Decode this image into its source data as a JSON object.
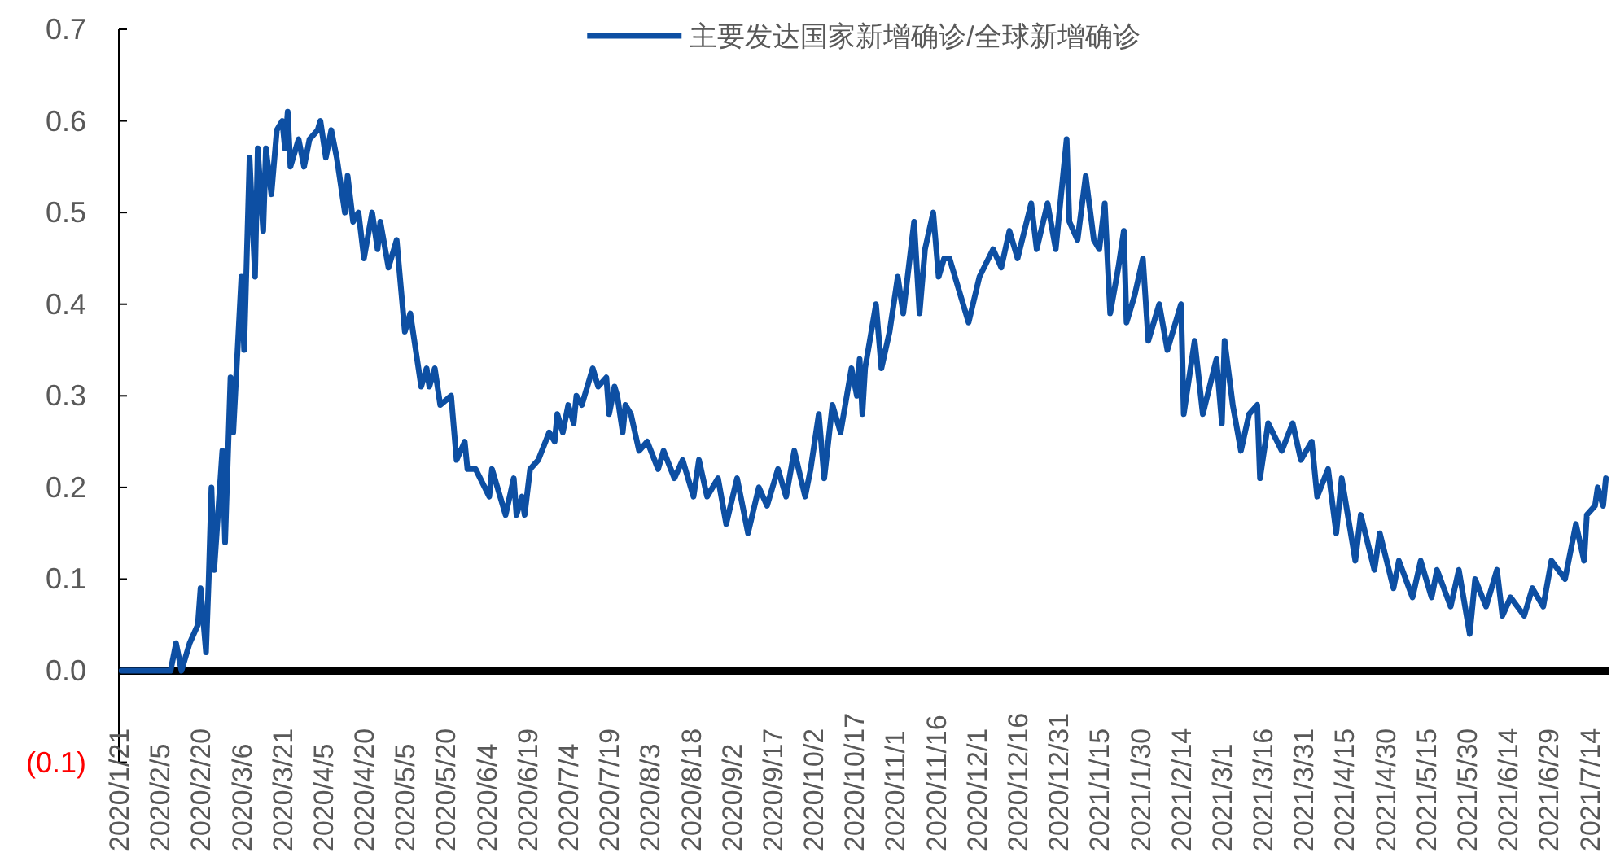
{
  "chart_data": {
    "type": "line",
    "x": [
      "2020-01-22",
      "2020-01-31",
      "2020-02-09",
      "2020-02-11",
      "2020-02-13",
      "2020-02-16",
      "2020-02-19",
      "2020-02-20",
      "2020-02-22",
      "2020-02-23",
      "2020-02-24",
      "2020-02-25",
      "2020-02-28",
      "2020-02-29",
      "2020-03-02",
      "2020-03-03",
      "2020-03-06",
      "2020-03-07",
      "2020-03-09",
      "2020-03-11",
      "2020-03-12",
      "2020-03-14",
      "2020-03-15",
      "2020-03-17",
      "2020-03-19",
      "2020-03-21",
      "2020-03-22",
      "2020-03-23",
      "2020-03-24",
      "2020-03-27",
      "2020-03-29",
      "2020-03-31",
      "2020-04-03",
      "2020-04-04",
      "2020-04-06",
      "2020-04-08",
      "2020-04-10",
      "2020-04-13",
      "2020-04-14",
      "2020-04-16",
      "2020-04-18",
      "2020-04-20",
      "2020-04-23",
      "2020-04-25",
      "2020-04-26",
      "2020-04-29",
      "2020-05-02",
      "2020-05-05",
      "2020-05-07",
      "2020-05-11",
      "2020-05-13",
      "2020-05-14",
      "2020-05-16",
      "2020-05-18",
      "2020-05-22",
      "2020-05-24",
      "2020-05-27",
      "2020-05-28",
      "2020-05-31",
      "2020-06-05",
      "2020-06-06",
      "2020-06-11",
      "2020-06-14",
      "2020-06-15",
      "2020-06-17",
      "2020-06-18",
      "2020-06-20",
      "2020-06-23",
      "2020-06-27",
      "2020-06-29",
      "2020-06-30",
      "2020-07-02",
      "2020-07-04",
      "2020-07-06",
      "2020-07-07",
      "2020-07-09",
      "2020-07-12",
      "2020-07-13",
      "2020-07-15",
      "2020-07-18",
      "2020-07-19",
      "2020-07-21",
      "2020-07-22",
      "2020-07-24",
      "2020-07-25",
      "2020-07-27",
      "2020-07-30",
      "2020-08-02",
      "2020-08-06",
      "2020-08-08",
      "2020-08-12",
      "2020-08-15",
      "2020-08-19",
      "2020-08-21",
      "2020-08-24",
      "2020-08-28",
      "2020-08-31",
      "2020-09-04",
      "2020-09-08",
      "2020-09-12",
      "2020-09-15",
      "2020-09-19",
      "2020-09-22",
      "2020-09-25",
      "2020-09-29",
      "2020-10-01",
      "2020-10-04",
      "2020-10-06",
      "2020-10-09",
      "2020-10-12",
      "2020-10-16",
      "2020-10-18",
      "2020-10-19",
      "2020-10-20",
      "2020-10-21",
      "2020-10-25",
      "2020-10-27",
      "2020-10-30",
      "2020-11-02",
      "2020-11-04",
      "2020-11-08",
      "2020-11-10",
      "2020-11-12",
      "2020-11-15",
      "2020-11-17",
      "2020-11-19",
      "2020-11-21",
      "2020-11-25",
      "2020-11-28",
      "2020-12-02",
      "2020-12-07",
      "2020-12-10",
      "2020-12-13",
      "2020-12-16",
      "2020-12-21",
      "2020-12-23",
      "2020-12-27",
      "2020-12-30",
      "2021-01-03",
      "2021-01-04",
      "2021-01-07",
      "2021-01-10",
      "2021-01-13",
      "2021-01-15",
      "2021-01-17",
      "2021-01-19",
      "2021-01-22",
      "2021-01-24",
      "2021-01-25",
      "2021-01-28",
      "2021-01-31",
      "2021-02-02",
      "2021-02-06",
      "2021-02-09",
      "2021-02-14",
      "2021-02-15",
      "2021-02-19",
      "2021-02-22",
      "2021-02-27",
      "2021-03-01",
      "2021-03-02",
      "2021-03-05",
      "2021-03-08",
      "2021-03-11",
      "2021-03-14",
      "2021-03-15",
      "2021-03-18",
      "2021-03-23",
      "2021-03-27",
      "2021-03-30",
      "2021-04-03",
      "2021-04-05",
      "2021-04-09",
      "2021-04-12",
      "2021-04-14",
      "2021-04-19",
      "2021-04-21",
      "2021-04-26",
      "2021-04-28",
      "2021-05-03",
      "2021-05-05",
      "2021-05-10",
      "2021-05-13",
      "2021-05-17",
      "2021-05-19",
      "2021-05-24",
      "2021-05-27",
      "2021-05-31",
      "2021-06-02",
      "2021-06-06",
      "2021-06-10",
      "2021-06-12",
      "2021-06-15",
      "2021-06-20",
      "2021-06-23",
      "2021-06-27",
      "2021-06-30",
      "2021-07-05",
      "2021-07-09",
      "2021-07-12",
      "2021-07-13",
      "2021-07-16",
      "2021-07-17",
      "2021-07-19",
      "2021-07-20"
    ],
    "series": [
      {
        "name": "主要发达国家新增确诊/全球新增确诊",
        "color": "#0d4fa3",
        "values": [
          0.0,
          0.0,
          0.0,
          0.03,
          0.0,
          0.03,
          0.05,
          0.09,
          0.02,
          0.1,
          0.2,
          0.11,
          0.24,
          0.14,
          0.32,
          0.26,
          0.43,
          0.35,
          0.56,
          0.43,
          0.57,
          0.48,
          0.57,
          0.52,
          0.59,
          0.6,
          0.57,
          0.61,
          0.55,
          0.58,
          0.55,
          0.58,
          0.59,
          0.6,
          0.56,
          0.59,
          0.56,
          0.5,
          0.54,
          0.49,
          0.5,
          0.45,
          0.5,
          0.46,
          0.49,
          0.44,
          0.47,
          0.37,
          0.39,
          0.31,
          0.33,
          0.31,
          0.33,
          0.29,
          0.3,
          0.23,
          0.25,
          0.22,
          0.22,
          0.19,
          0.22,
          0.17,
          0.21,
          0.17,
          0.19,
          0.17,
          0.22,
          0.23,
          0.26,
          0.25,
          0.28,
          0.26,
          0.29,
          0.27,
          0.3,
          0.29,
          0.32,
          0.33,
          0.31,
          0.32,
          0.28,
          0.31,
          0.3,
          0.26,
          0.29,
          0.28,
          0.24,
          0.25,
          0.22,
          0.24,
          0.21,
          0.23,
          0.19,
          0.23,
          0.19,
          0.21,
          0.16,
          0.21,
          0.15,
          0.2,
          0.18,
          0.22,
          0.19,
          0.24,
          0.19,
          0.22,
          0.28,
          0.21,
          0.29,
          0.26,
          0.33,
          0.3,
          0.34,
          0.28,
          0.33,
          0.4,
          0.33,
          0.37,
          0.43,
          0.39,
          0.49,
          0.39,
          0.46,
          0.5,
          0.43,
          0.45,
          0.45,
          0.41,
          0.38,
          0.43,
          0.46,
          0.44,
          0.48,
          0.45,
          0.51,
          0.46,
          0.51,
          0.46,
          0.58,
          0.49,
          0.47,
          0.54,
          0.47,
          0.46,
          0.51,
          0.39,
          0.44,
          0.48,
          0.38,
          0.41,
          0.45,
          0.36,
          0.4,
          0.35,
          0.4,
          0.28,
          0.36,
          0.28,
          0.34,
          0.27,
          0.36,
          0.29,
          0.24,
          0.28,
          0.29,
          0.21,
          0.27,
          0.24,
          0.27,
          0.23,
          0.25,
          0.19,
          0.22,
          0.15,
          0.21,
          0.12,
          0.17,
          0.11,
          0.15,
          0.09,
          0.12,
          0.08,
          0.12,
          0.08,
          0.11,
          0.07,
          0.11,
          0.04,
          0.1,
          0.07,
          0.11,
          0.06,
          0.08,
          0.06,
          0.09,
          0.07,
          0.12,
          0.1,
          0.16,
          0.12,
          0.17,
          0.18,
          0.2,
          0.18,
          0.21
        ]
      }
    ],
    "xlim": [
      "2020-01-21",
      "2021-07-21"
    ],
    "xticks": [
      {
        "value": "2020-01-21",
        "label": "2020/1/21"
      },
      {
        "value": "2020-02-05",
        "label": "2020/2/5"
      },
      {
        "value": "2020-02-20",
        "label": "2020/2/20"
      },
      {
        "value": "2020-03-06",
        "label": "2020/3/6"
      },
      {
        "value": "2020-03-21",
        "label": "2020/3/21"
      },
      {
        "value": "2020-04-05",
        "label": "2020/4/5"
      },
      {
        "value": "2020-04-20",
        "label": "2020/4/20"
      },
      {
        "value": "2020-05-05",
        "label": "2020/5/5"
      },
      {
        "value": "2020-05-20",
        "label": "2020/5/20"
      },
      {
        "value": "2020-06-04",
        "label": "2020/6/4"
      },
      {
        "value": "2020-06-19",
        "label": "2020/6/19"
      },
      {
        "value": "2020-07-04",
        "label": "2020/7/4"
      },
      {
        "value": "2020-07-19",
        "label": "2020/7/19"
      },
      {
        "value": "2020-08-03",
        "label": "2020/8/3"
      },
      {
        "value": "2020-08-18",
        "label": "2020/8/18"
      },
      {
        "value": "2020-09-02",
        "label": "2020/9/2"
      },
      {
        "value": "2020-09-17",
        "label": "2020/9/17"
      },
      {
        "value": "2020-10-02",
        "label": "2020/10/2"
      },
      {
        "value": "2020-10-17",
        "label": "2020/10/17"
      },
      {
        "value": "2020-11-01",
        "label": "2020/11/1"
      },
      {
        "value": "2020-11-16",
        "label": "2020/11/16"
      },
      {
        "value": "2020-12-01",
        "label": "2020/12/1"
      },
      {
        "value": "2020-12-16",
        "label": "2020/12/16"
      },
      {
        "value": "2020-12-31",
        "label": "2020/12/31"
      },
      {
        "value": "2021-01-15",
        "label": "2021/1/15"
      },
      {
        "value": "2021-01-30",
        "label": "2021/1/30"
      },
      {
        "value": "2021-02-14",
        "label": "2021/2/14"
      },
      {
        "value": "2021-03-01",
        "label": "2021/3/1"
      },
      {
        "value": "2021-03-16",
        "label": "2021/3/16"
      },
      {
        "value": "2021-03-31",
        "label": "2021/3/31"
      },
      {
        "value": "2021-04-15",
        "label": "2021/4/15"
      },
      {
        "value": "2021-04-30",
        "label": "2021/4/30"
      },
      {
        "value": "2021-05-15",
        "label": "2021/5/15"
      },
      {
        "value": "2021-05-30",
        "label": "2021/5/30"
      },
      {
        "value": "2021-06-14",
        "label": "2021/6/14"
      },
      {
        "value": "2021-06-29",
        "label": "2021/6/29"
      },
      {
        "value": "2021-07-14",
        "label": "2021/7/14"
      }
    ],
    "ylim": [
      -0.1,
      0.7
    ],
    "yticks": [
      {
        "value": -0.1,
        "label": "(0.1)"
      },
      {
        "value": 0,
        "label": "0.0"
      },
      {
        "value": 0.1,
        "label": "0.1"
      },
      {
        "value": 0.2,
        "label": "0.2"
      },
      {
        "value": 0.3,
        "label": "0.3"
      },
      {
        "value": 0.4,
        "label": "0.4"
      },
      {
        "value": 0.5,
        "label": "0.5"
      },
      {
        "value": 0.6,
        "label": "0.6"
      },
      {
        "value": 0.7,
        "label": "0.7"
      }
    ],
    "legend": "top",
    "line_style": "solid"
  }
}
